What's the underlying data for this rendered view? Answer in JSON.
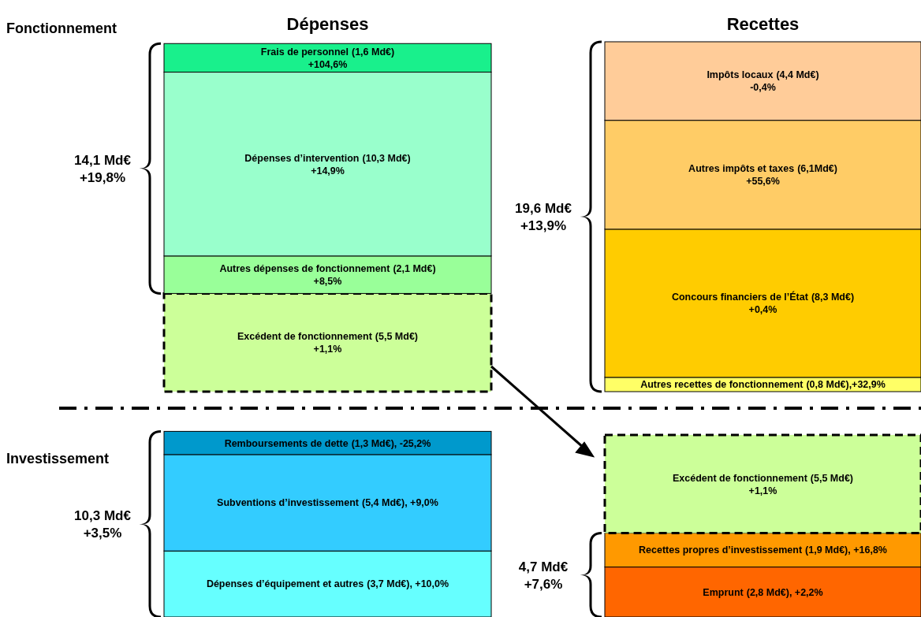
{
  "chart_data": [
    {
      "type": "bar",
      "stacked": true,
      "title": "Fonctionnement",
      "categories": [
        "Dépenses",
        "Recettes"
      ],
      "annotations": [
        "14,1 Md€",
        "+19,8%",
        "19,6 Md€",
        "+13,9%"
      ],
      "series": [
        {
          "name": "Excédent de fonctionnement",
          "color": "#ccff99",
          "values": [
            5.5,
            null
          ],
          "value_labels": [
            "(5,5 Md€)\n+1,1%",
            null
          ],
          "line_style": "dashed"
        },
        {
          "name": "Autres dépenses de fonctionnement",
          "color": "#99ff99",
          "values": [
            2.1,
            null
          ],
          "value_labels": [
            "(2,1 Md€)\n+8,5%",
            null
          ]
        },
        {
          "name": "Dépenses d’intervention",
          "color": "#99ffcc",
          "values": [
            10.3,
            null
          ],
          "value_labels": [
            "(10,3 Md€)\n+14,9%",
            null
          ]
        },
        {
          "name": "Frais de personnel",
          "color": "#19f08c",
          "values": [
            1.6,
            null
          ],
          "value_labels": [
            "(1,6 Md€)\n+104,6%",
            null
          ]
        },
        {
          "name": "Autres recettes de fonctionnement",
          "color": "#ffff66",
          "values": [
            null,
            0.8
          ],
          "value_labels": [
            null,
            "(0,8 Md€),+32,9%"
          ]
        },
        {
          "name": "Concours financiers de l’État",
          "color": "#ffcc00",
          "values": [
            null,
            8.3
          ],
          "value_labels": [
            null,
            "(8,3 Md€)\n+0,4%"
          ]
        },
        {
          "name": "Autres impôts et taxes",
          "color": "#ffcc66",
          "values": [
            null,
            6.1
          ],
          "value_labels": [
            null,
            "(6,1Md€)\n+55,6%"
          ]
        },
        {
          "name": "Impôts locaux",
          "color": "#ffcc99",
          "values": [
            null,
            4.4
          ],
          "value_labels": [
            null,
            "(4,4 Md€)\n-0,4%"
          ]
        }
      ]
    },
    {
      "type": "bar",
      "stacked": true,
      "title": "Investissement",
      "categories": [
        null,
        null
      ],
      "annotations": [
        "10,3 Md€",
        "+3,5%",
        "4,7 Md€",
        "+7,6%"
      ],
      "series": [
        {
          "name": "Dépenses d’équipement et autres",
          "color": "#66ffff",
          "values": [
            3.7,
            null
          ],
          "value_labels": [
            "(3,7 Md€), +10,0%",
            null
          ]
        },
        {
          "name": "Subventions d’investissement",
          "color": "#33ccff",
          "values": [
            5.4,
            null
          ],
          "value_labels": [
            "(5,4 Md€), +9,0%",
            null
          ]
        },
        {
          "name": "Remboursements de dette",
          "color": "#0099cc",
          "values": [
            1.3,
            null
          ],
          "value_labels": [
            "(1,3 Md€), -25,2%",
            null
          ]
        },
        {
          "name": "Emprunt",
          "color": "#ff6600",
          "values": [
            null,
            2.8
          ],
          "value_labels": [
            null,
            "(2,8 Md€), +2,2%"
          ]
        },
        {
          "name": "Recettes propres d’investissement",
          "color": "#ff9900",
          "values": [
            null,
            1.9
          ],
          "value_labels": [
            null,
            "(1,9 Md€), +16,8%"
          ]
        },
        {
          "name": "Excédent de fonctionnement",
          "color": "#ccff99",
          "values": [
            null,
            5.5
          ],
          "value_labels": [
            null,
            "(5,5 Md€)\n+1,1%"
          ],
          "line_style": "dashed"
        }
      ]
    }
  ]
}
